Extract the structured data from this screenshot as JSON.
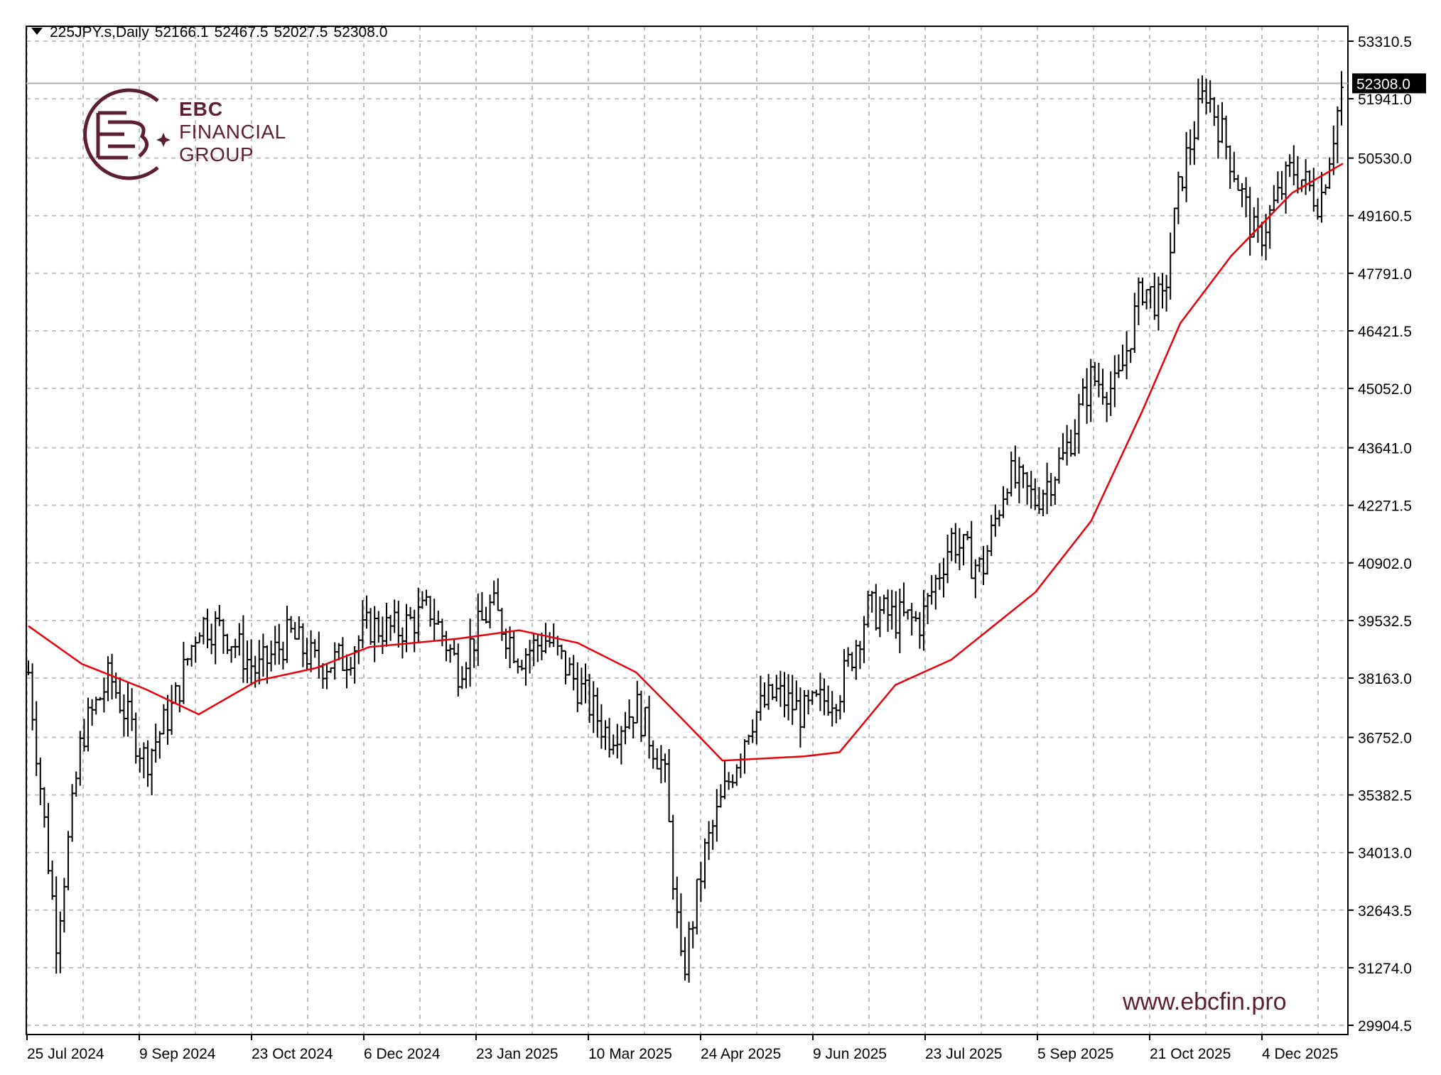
{
  "header": {
    "symbol": "225JPY.s,Daily",
    "open": "52166.1",
    "high": "52467.5",
    "low": "52027.5",
    "close": "52308.0"
  },
  "brand": {
    "name_line1": "EBC",
    "name_line2": "FINANCIAL",
    "name_line3": "GROUP",
    "website": "www.ebcfin.pro",
    "color": "#5e1e32"
  },
  "colors": {
    "bars": "#000000",
    "moving_average": "#e8000b",
    "grid": "#c0c0c0",
    "price_line": "#b0b0b0"
  },
  "chart_data": {
    "type": "ohlc",
    "symbol": "225JPY.s",
    "timeframe": "Daily",
    "current_price": "52308.0",
    "y_ticks": [
      "53310.5",
      "51941.0",
      "50530.0",
      "49160.5",
      "47791.0",
      "46421.5",
      "45052.0",
      "43641.0",
      "42271.5",
      "40902.0",
      "39532.5",
      "38163.0",
      "36752.0",
      "35382.5",
      "34013.0",
      "32643.5",
      "31274.0",
      "29904.5"
    ],
    "x_ticks": [
      "25 Jul 2024",
      "9 Sep 2024",
      "23 Oct 2024",
      "6 Dec 2024",
      "23 Jan 2025",
      "10 Mar 2025",
      "24 Apr 2025",
      "9 Jun 2025",
      "23 Jul 2025",
      "5 Sep 2025",
      "21 Oct 2025",
      "4 Dec 2025"
    ],
    "ylim": [
      29904.5,
      53310.5
    ],
    "grid": true,
    "bars_approx_close": [
      {
        "date": "2024-07-25",
        "close": 38300
      },
      {
        "date": "2024-08-05",
        "close": 32000
      },
      {
        "date": "2024-08-15",
        "close": 36800
      },
      {
        "date": "2024-08-26",
        "close": 38200
      },
      {
        "date": "2024-09-09",
        "close": 36200
      },
      {
        "date": "2024-09-20",
        "close": 37500
      },
      {
        "date": "2024-09-30",
        "close": 39500
      },
      {
        "date": "2024-10-10",
        "close": 39300
      },
      {
        "date": "2024-10-23",
        "close": 38300
      },
      {
        "date": "2024-11-05",
        "close": 39200
      },
      {
        "date": "2024-11-15",
        "close": 38500
      },
      {
        "date": "2024-11-26",
        "close": 38600
      },
      {
        "date": "2024-12-06",
        "close": 39400
      },
      {
        "date": "2024-12-17",
        "close": 39300
      },
      {
        "date": "2024-12-30",
        "close": 39800
      },
      {
        "date": "2025-01-10",
        "close": 38400
      },
      {
        "date": "2025-01-23",
        "close": 39900
      },
      {
        "date": "2025-02-03",
        "close": 38700
      },
      {
        "date": "2025-02-14",
        "close": 39100
      },
      {
        "date": "2025-02-26",
        "close": 38000
      },
      {
        "date": "2025-03-10",
        "close": 36800
      },
      {
        "date": "2025-03-21",
        "close": 37500
      },
      {
        "date": "2025-04-01",
        "close": 36000
      },
      {
        "date": "2025-04-08",
        "close": 31000
      },
      {
        "date": "2025-04-17",
        "close": 34000
      },
      {
        "date": "2025-04-24",
        "close": 35300
      },
      {
        "date": "2025-05-05",
        "close": 37200
      },
      {
        "date": "2025-05-15",
        "close": 37800
      },
      {
        "date": "2025-05-26",
        "close": 37300
      },
      {
        "date": "2025-06-09",
        "close": 37900
      },
      {
        "date": "2025-06-20",
        "close": 39800
      },
      {
        "date": "2025-07-01",
        "close": 39600
      },
      {
        "date": "2025-07-11",
        "close": 39500
      },
      {
        "date": "2025-07-23",
        "close": 41500
      },
      {
        "date": "2025-08-04",
        "close": 40700
      },
      {
        "date": "2025-08-14",
        "close": 43000
      },
      {
        "date": "2025-08-25",
        "close": 42400
      },
      {
        "date": "2025-09-05",
        "close": 43400
      },
      {
        "date": "2025-09-16",
        "close": 45300
      },
      {
        "date": "2025-09-26",
        "close": 45000
      },
      {
        "date": "2025-10-06",
        "close": 47500
      },
      {
        "date": "2025-10-14",
        "close": 47000
      },
      {
        "date": "2025-10-21",
        "close": 50000
      },
      {
        "date": "2025-10-31",
        "close": 52200
      },
      {
        "date": "2025-11-10",
        "close": 50500
      },
      {
        "date": "2025-11-20",
        "close": 48500
      },
      {
        "date": "2025-12-04",
        "close": 50300
      },
      {
        "date": "2025-12-15",
        "close": 49500
      },
      {
        "date": "2025-12-24",
        "close": 52308
      }
    ],
    "moving_average_approx": [
      {
        "date": "2024-07-25",
        "value": 39400
      },
      {
        "date": "2024-08-15",
        "value": 38500
      },
      {
        "date": "2024-09-09",
        "value": 37900
      },
      {
        "date": "2024-09-30",
        "value": 37300
      },
      {
        "date": "2024-10-23",
        "value": 38100
      },
      {
        "date": "2024-11-15",
        "value": 38400
      },
      {
        "date": "2024-12-06",
        "value": 38900
      },
      {
        "date": "2025-01-10",
        "value": 39100
      },
      {
        "date": "2025-02-03",
        "value": 39300
      },
      {
        "date": "2025-02-26",
        "value": 39000
      },
      {
        "date": "2025-03-21",
        "value": 38300
      },
      {
        "date": "2025-04-08",
        "value": 37200
      },
      {
        "date": "2025-04-24",
        "value": 36200
      },
      {
        "date": "2025-05-26",
        "value": 36300
      },
      {
        "date": "2025-06-09",
        "value": 36400
      },
      {
        "date": "2025-07-01",
        "value": 38000
      },
      {
        "date": "2025-07-23",
        "value": 38600
      },
      {
        "date": "2025-08-25",
        "value": 40200
      },
      {
        "date": "2025-09-16",
        "value": 41900
      },
      {
        "date": "2025-10-06",
        "value": 44500
      },
      {
        "date": "2025-10-21",
        "value": 46600
      },
      {
        "date": "2025-11-10",
        "value": 48200
      },
      {
        "date": "2025-12-04",
        "value": 49700
      },
      {
        "date": "2025-12-24",
        "value": 50400
      }
    ]
  }
}
